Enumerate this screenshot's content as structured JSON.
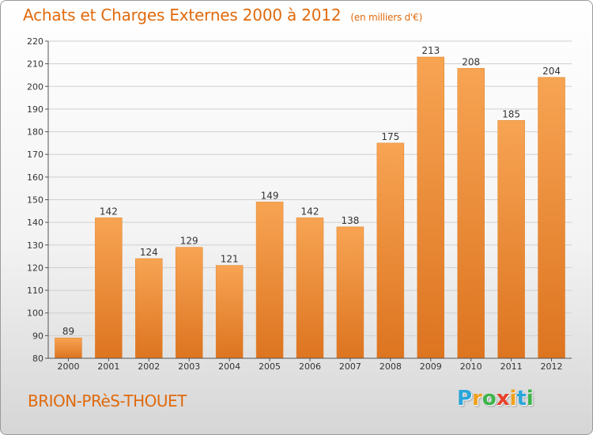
{
  "chart_data": {
    "type": "bar",
    "title": "Achats et Charges Externes 2000 à 2012",
    "subtitle": "(en milliers d'€)",
    "categories": [
      "2000",
      "2001",
      "2002",
      "2003",
      "2004",
      "2005",
      "2006",
      "2007",
      "2008",
      "2009",
      "2010",
      "2011",
      "2012"
    ],
    "values": [
      89,
      142,
      124,
      129,
      121,
      149,
      142,
      138,
      175,
      213,
      208,
      185,
      204
    ],
    "ylim": [
      80,
      220
    ],
    "yticks": [
      80,
      90,
      100,
      110,
      120,
      130,
      140,
      150,
      160,
      170,
      180,
      190,
      200,
      210,
      220
    ],
    "grid": true,
    "bar_color": "#f0923a"
  },
  "footer": {
    "location": "BRION-PRèS-THOUET",
    "brand": [
      "P",
      "r",
      "o",
      "x",
      "i",
      "t",
      "i"
    ],
    "brand_colors": [
      "#2aa6d9",
      "#f2a01a",
      "#3cb54a",
      "#e8402a",
      "#f2a01a",
      "#2aa6d9",
      "#3cb54a"
    ]
  }
}
